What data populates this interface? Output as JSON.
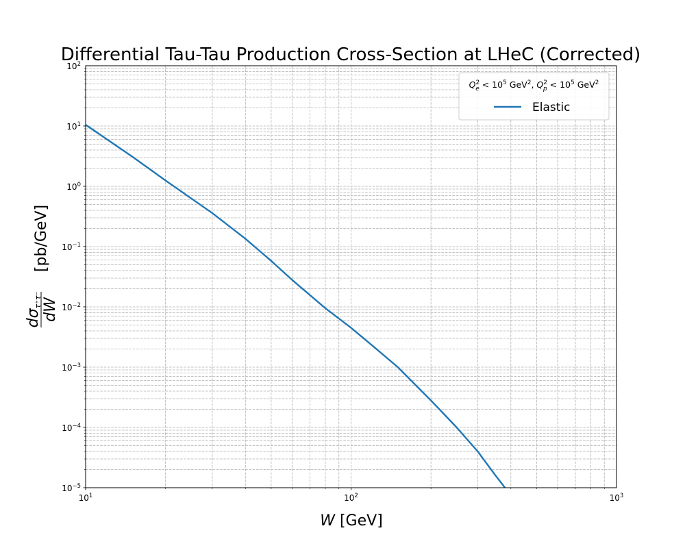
{
  "chart_data": {
    "type": "line",
    "title": "Differential Tau-Tau Production Cross-Section at LHeC (Corrected)",
    "xlabel": "W [GeV]",
    "ylabel": "dσ_{τ+τ−}/dW [pb/GeV]",
    "xscale": "log",
    "yscale": "log",
    "xlim": [
      10,
      1000
    ],
    "ylim": [
      1e-05,
      100
    ],
    "grid": true,
    "x_ticks": [
      {
        "value": 10,
        "base": "10",
        "exp": "1"
      },
      {
        "value": 100,
        "base": "10",
        "exp": "2"
      },
      {
        "value": 1000,
        "base": "10",
        "exp": "3"
      }
    ],
    "y_ticks": [
      {
        "value": 1e-05,
        "base": "10",
        "exp": "−5"
      },
      {
        "value": 0.0001,
        "base": "10",
        "exp": "−4"
      },
      {
        "value": 0.001,
        "base": "10",
        "exp": "−3"
      },
      {
        "value": 0.01,
        "base": "10",
        "exp": "−2"
      },
      {
        "value": 0.1,
        "base": "10",
        "exp": "−1"
      },
      {
        "value": 1,
        "base": "10",
        "exp": "0"
      },
      {
        "value": 10,
        "base": "10",
        "exp": "1"
      },
      {
        "value": 100,
        "base": "10",
        "exp": "2"
      }
    ],
    "legend": {
      "placement": "top-right",
      "title": "Q_e^2 < 10^5 GeV^2, Q_p^2 < 10^5 GeV^2"
    },
    "series": [
      {
        "name": "Elastic",
        "color": "#1f77b4",
        "x": [
          10,
          15,
          20,
          30,
          40,
          50,
          60,
          80,
          100,
          120,
          150,
          200,
          250,
          300,
          350,
          380
        ],
        "y": [
          10.5,
          3.1,
          1.25,
          0.36,
          0.135,
          0.058,
          0.028,
          0.0095,
          0.0045,
          0.0023,
          0.001,
          0.00028,
          0.0001,
          4e-05,
          1.6e-05,
          1e-05
        ]
      }
    ]
  }
}
